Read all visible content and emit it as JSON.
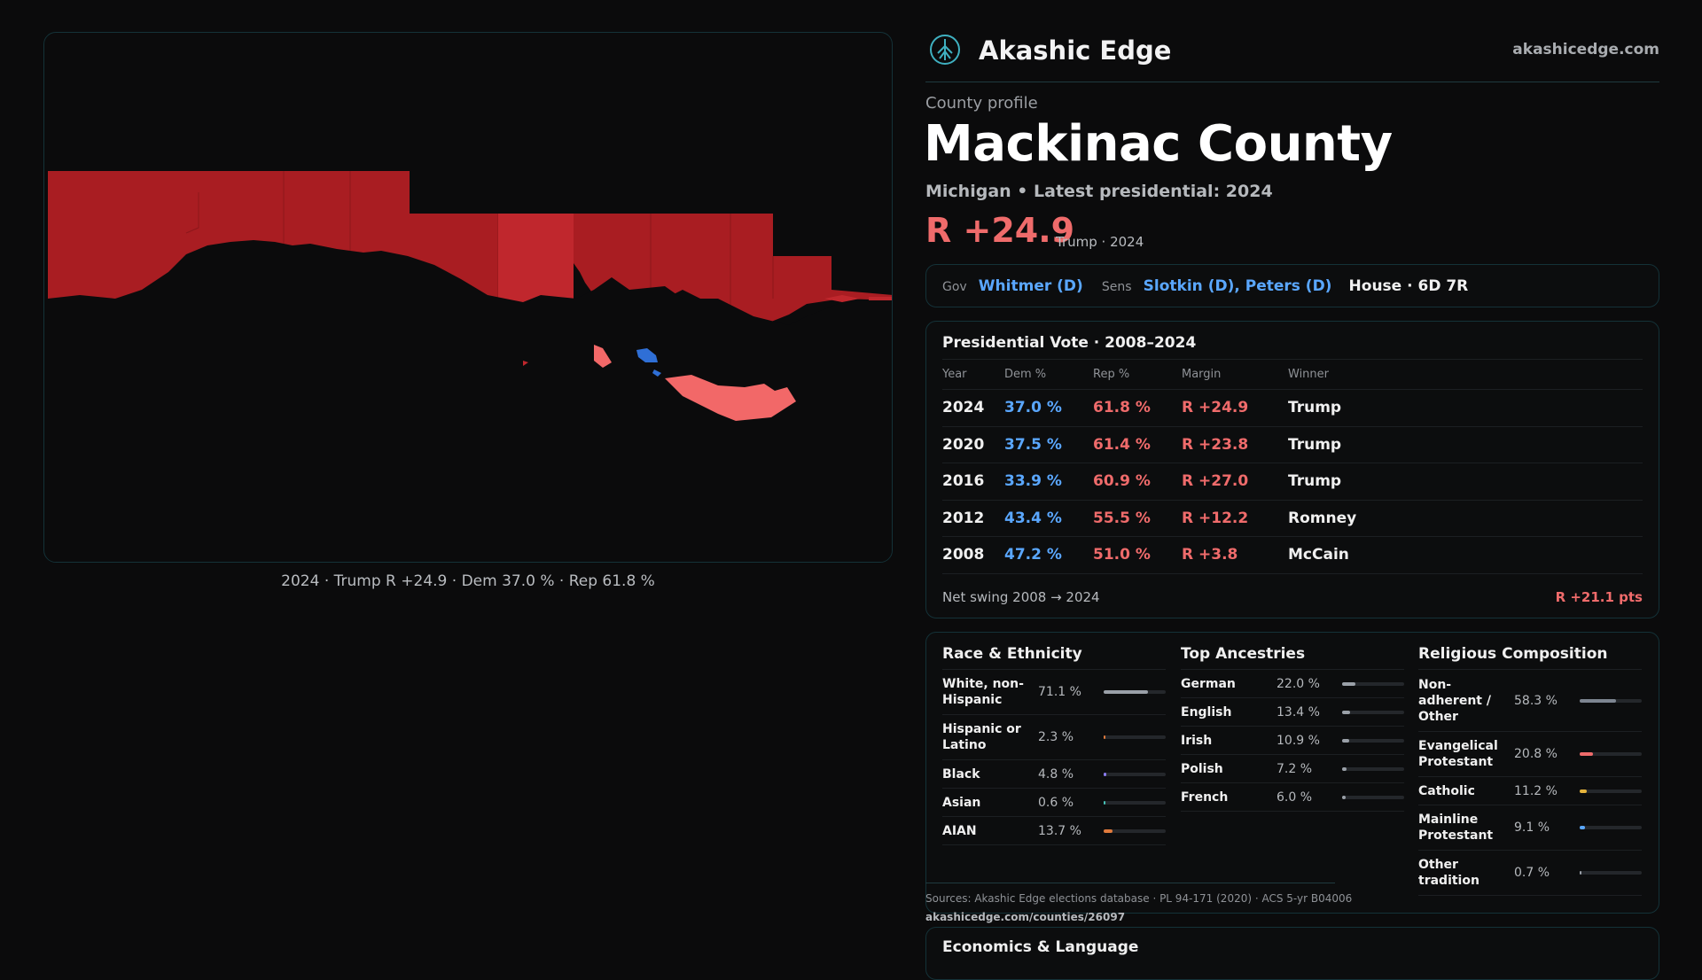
{
  "map": {
    "caption": "2024 · Trump R +24.9 · Dem 37.0 % · Rep 61.8 %",
    "colors": {
      "strong_red": "#a91d22",
      "red": "#c0272d",
      "light_red": "#f26868",
      "blue": "#2f6fd6",
      "water": "#0b0b0c"
    }
  },
  "header": {
    "brand": "Akashic Edge",
    "site": "akashicedge.com",
    "logo_icon": "tree-globe-icon"
  },
  "profile": {
    "eyebrow": "County profile",
    "title": "Mackinac County",
    "subtitle": "Michigan • Latest presidential: 2024",
    "margin": "R +24.9",
    "margin_note": "Trump · 2024"
  },
  "officials": {
    "gov_label": "Gov",
    "gov": "Whitmer (D)",
    "sens_label": "Sens",
    "sens": "Slotkin (D), Peters (D)",
    "house": "House · 6D 7R"
  },
  "presidential": {
    "title": "Presidential Vote · 2008–2024",
    "columns": [
      "Year",
      "Dem %",
      "Rep %",
      "Margin",
      "Winner"
    ],
    "rows": [
      {
        "year": "2024",
        "dem": "37.0 %",
        "rep": "61.8 %",
        "margin": "R +24.9",
        "winner": "Trump"
      },
      {
        "year": "2020",
        "dem": "37.5 %",
        "rep": "61.4 %",
        "margin": "R +23.8",
        "winner": "Trump"
      },
      {
        "year": "2016",
        "dem": "33.9 %",
        "rep": "60.9 %",
        "margin": "R +27.0",
        "winner": "Trump"
      },
      {
        "year": "2012",
        "dem": "43.4 %",
        "rep": "55.5 %",
        "margin": "R +12.2",
        "winner": "Romney"
      },
      {
        "year": "2008",
        "dem": "47.2 %",
        "rep": "51.0 %",
        "margin": "R +3.8",
        "winner": "McCain"
      }
    ],
    "swing_label": "Net swing 2008 → 2024",
    "swing_value": "R +21.1 pts"
  },
  "race": {
    "title": "Race & Ethnicity",
    "items": [
      {
        "label": "White, non-Hispanic",
        "value": "71.1 %",
        "fraction": 0.711,
        "color": "#9aa0a8"
      },
      {
        "label": "Hispanic or Latino",
        "value": "2.3 %",
        "fraction": 0.023,
        "color": "#e07a3c"
      },
      {
        "label": "Black",
        "value": "4.8 %",
        "fraction": 0.048,
        "color": "#8a7cf0"
      },
      {
        "label": "Asian",
        "value": "0.6 %",
        "fraction": 0.006,
        "color": "#47c3b8"
      },
      {
        "label": "AIAN",
        "value": "13.7 %",
        "fraction": 0.137,
        "color": "#e07a3c"
      }
    ]
  },
  "ancestry": {
    "title": "Top Ancestries",
    "items": [
      {
        "label": "German",
        "value": "22.0 %",
        "fraction": 0.22,
        "color": "#9aa0a8"
      },
      {
        "label": "English",
        "value": "13.4 %",
        "fraction": 0.134,
        "color": "#9aa0a8"
      },
      {
        "label": "Irish",
        "value": "10.9 %",
        "fraction": 0.109,
        "color": "#9aa0a8"
      },
      {
        "label": "Polish",
        "value": "7.2 %",
        "fraction": 0.072,
        "color": "#9aa0a8"
      },
      {
        "label": "French",
        "value": "6.0 %",
        "fraction": 0.06,
        "color": "#9aa0a8"
      }
    ]
  },
  "religion": {
    "title": "Religious Composition",
    "items": [
      {
        "label": "Non-adherent / Other",
        "value": "58.3 %",
        "fraction": 0.583,
        "color": "#7d8591"
      },
      {
        "label": "Evangelical Protestant",
        "value": "20.8 %",
        "fraction": 0.208,
        "color": "#ef6b6b"
      },
      {
        "label": "Catholic",
        "value": "11.2 %",
        "fraction": 0.112,
        "color": "#e6b43c"
      },
      {
        "label": "Mainline Protestant",
        "value": "9.1 %",
        "fraction": 0.091,
        "color": "#5aa7ff"
      },
      {
        "label": "Other tradition",
        "value": "0.7 %",
        "fraction": 0.007,
        "color": "#9aa0a8"
      }
    ]
  },
  "sources": {
    "text": "Sources: Akashic Edge elections database · PL 94-171 (2020) · ACS 5-yr B04006",
    "url": "akashicedge.com/counties/26097"
  },
  "economics": {
    "title": "Economics & Language"
  }
}
